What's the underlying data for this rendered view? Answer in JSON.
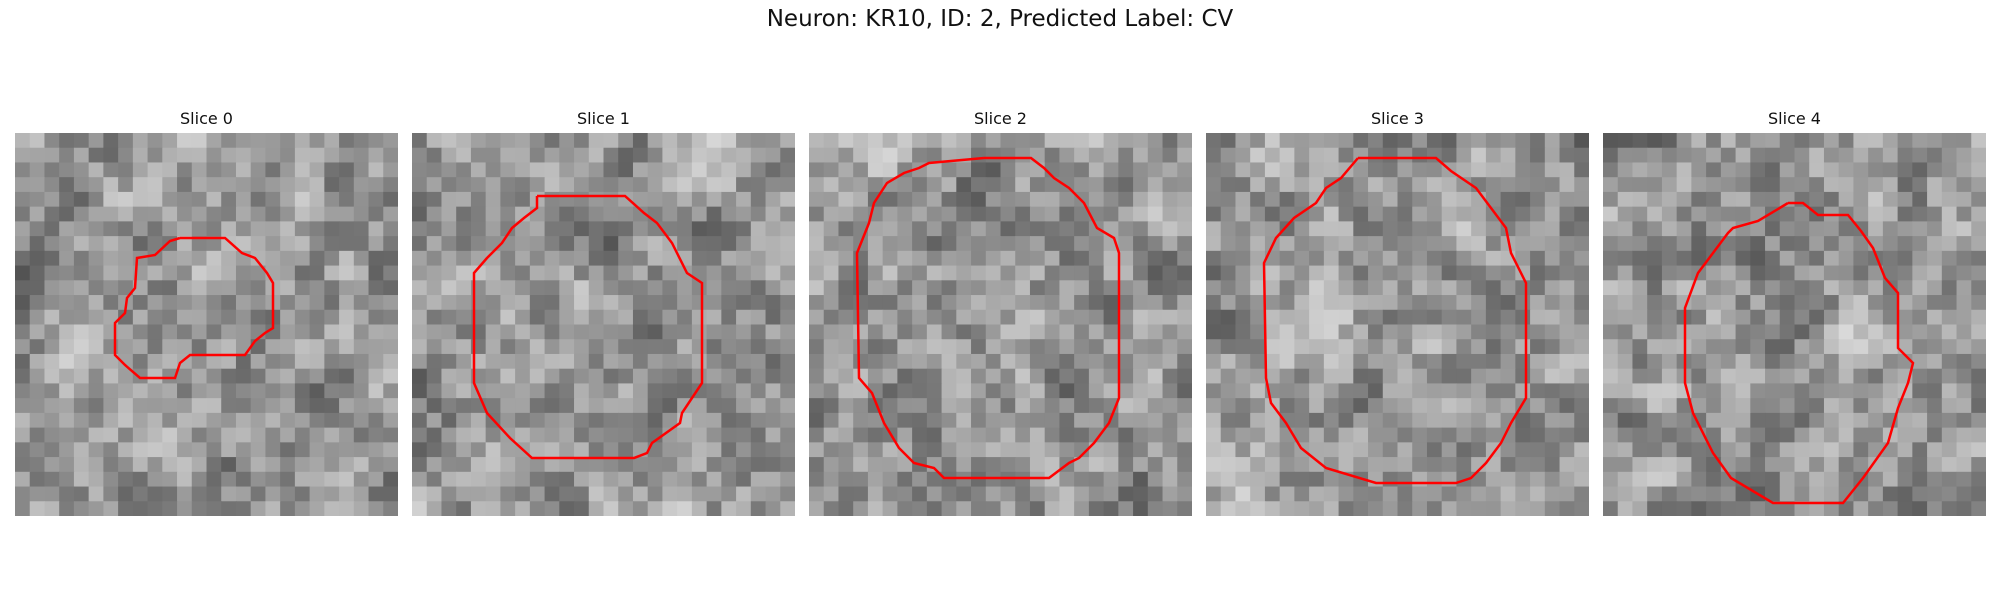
{
  "figure": {
    "title": "Neuron: KR10, ID: 2, Predicted Label: CV",
    "colors": {
      "contour": "#ff0000",
      "background": "#ffffff"
    }
  },
  "panels": [
    {
      "title": "Slice 0"
    },
    {
      "title": "Slice 1"
    },
    {
      "title": "Slice 2"
    },
    {
      "title": "Slice 3"
    },
    {
      "title": "Slice 4"
    }
  ]
}
